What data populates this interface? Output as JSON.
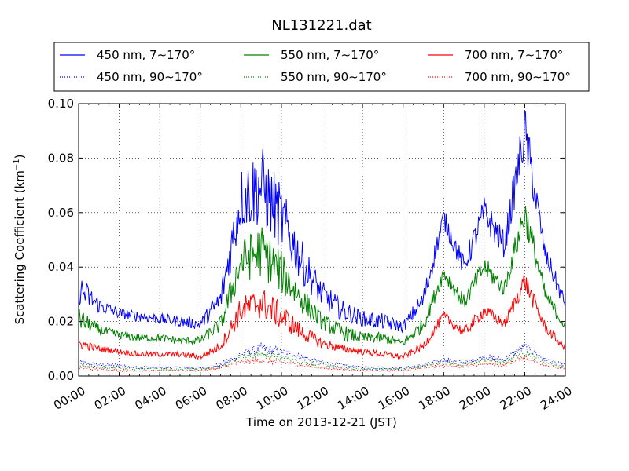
{
  "chart_data": {
    "type": "line",
    "title": "NL131221.dat",
    "xlabel": "Time on 2013-12-21 (JST)",
    "ylabel_main": "Scattering Coefficient (km",
    "ylabel_sup": "−1",
    "ylabel_tail": ")",
    "xlim_hours": [
      0,
      24
    ],
    "ylim": [
      0.0,
      0.1
    ],
    "x_tick_labels": [
      "00:00",
      "02:00",
      "04:00",
      "06:00",
      "08:00",
      "10:00",
      "12:00",
      "14:00",
      "16:00",
      "18:00",
      "20:00",
      "22:00",
      "24:00"
    ],
    "y_tick_labels": [
      "0.00",
      "0.02",
      "0.04",
      "0.06",
      "0.08",
      "0.10"
    ],
    "grid": true,
    "legend_position": "above-plot",
    "series": [
      {
        "name": "450 nm, 7∼170°",
        "color": "#0000ff",
        "style": "solid",
        "base": [
          0.032,
          0.026,
          0.023,
          0.022,
          0.021,
          0.02,
          0.019,
          0.028,
          0.065,
          0.07,
          0.058,
          0.042,
          0.03,
          0.024,
          0.021,
          0.02,
          0.018,
          0.028,
          0.058,
          0.04,
          0.06,
          0.048,
          0.09,
          0.045,
          0.026
        ],
        "amp": [
          0.006,
          0.003,
          0.002,
          0.002,
          0.002,
          0.002,
          0.002,
          0.005,
          0.012,
          0.015,
          0.012,
          0.008,
          0.005,
          0.004,
          0.003,
          0.003,
          0.002,
          0.004,
          0.004,
          0.004,
          0.006,
          0.005,
          0.01,
          0.004,
          0.003
        ]
      },
      {
        "name": "450 nm, 90∼170°",
        "color": "#0000ff",
        "style": "dotted",
        "base": [
          0.005,
          0.004,
          0.004,
          0.003,
          0.003,
          0.003,
          0.003,
          0.004,
          0.008,
          0.01,
          0.009,
          0.007,
          0.005,
          0.004,
          0.003,
          0.003,
          0.003,
          0.004,
          0.006,
          0.005,
          0.007,
          0.006,
          0.011,
          0.006,
          0.004
        ],
        "amp": [
          0.001,
          0.0007,
          0.0006,
          0.0005,
          0.0005,
          0.0005,
          0.0005,
          0.0008,
          0.0015,
          0.002,
          0.0015,
          0.001,
          0.0008,
          0.0006,
          0.0005,
          0.0005,
          0.0005,
          0.0006,
          0.0008,
          0.0007,
          0.001,
          0.0008,
          0.0015,
          0.0007,
          0.0006
        ]
      },
      {
        "name": "550 nm, 7∼170°",
        "color": "#008000",
        "style": "solid",
        "base": [
          0.021,
          0.017,
          0.015,
          0.014,
          0.014,
          0.013,
          0.013,
          0.019,
          0.042,
          0.046,
          0.038,
          0.028,
          0.02,
          0.016,
          0.014,
          0.014,
          0.012,
          0.019,
          0.038,
          0.027,
          0.04,
          0.032,
          0.06,
          0.03,
          0.018
        ],
        "amp": [
          0.004,
          0.002,
          0.0015,
          0.0015,
          0.0015,
          0.0015,
          0.0015,
          0.003,
          0.008,
          0.01,
          0.008,
          0.005,
          0.003,
          0.003,
          0.002,
          0.002,
          0.0015,
          0.003,
          0.003,
          0.003,
          0.004,
          0.003,
          0.007,
          0.003,
          0.002
        ]
      },
      {
        "name": "550 nm, 90∼170°",
        "color": "#008000",
        "style": "dotted",
        "base": [
          0.004,
          0.003,
          0.003,
          0.0025,
          0.0025,
          0.0025,
          0.0025,
          0.0035,
          0.007,
          0.008,
          0.007,
          0.005,
          0.004,
          0.003,
          0.0025,
          0.0025,
          0.0025,
          0.0035,
          0.005,
          0.004,
          0.006,
          0.005,
          0.009,
          0.005,
          0.003
        ],
        "amp": [
          0.0008,
          0.0005,
          0.0005,
          0.0004,
          0.0004,
          0.0004,
          0.0004,
          0.0006,
          0.0012,
          0.0015,
          0.0012,
          0.0008,
          0.0006,
          0.0005,
          0.0004,
          0.0004,
          0.0004,
          0.0005,
          0.0007,
          0.0006,
          0.0008,
          0.0007,
          0.0012,
          0.0006,
          0.0005
        ]
      },
      {
        "name": "700 nm, 7∼170°",
        "color": "#ff0000",
        "style": "solid",
        "base": [
          0.012,
          0.01,
          0.009,
          0.008,
          0.008,
          0.008,
          0.007,
          0.011,
          0.024,
          0.027,
          0.022,
          0.016,
          0.012,
          0.01,
          0.009,
          0.008,
          0.007,
          0.011,
          0.022,
          0.016,
          0.024,
          0.019,
          0.035,
          0.018,
          0.01
        ],
        "amp": [
          0.002,
          0.0012,
          0.001,
          0.001,
          0.001,
          0.001,
          0.001,
          0.0018,
          0.005,
          0.006,
          0.005,
          0.003,
          0.002,
          0.0015,
          0.0012,
          0.0012,
          0.001,
          0.0015,
          0.002,
          0.002,
          0.0025,
          0.002,
          0.004,
          0.002,
          0.0012
        ]
      },
      {
        "name": "700 nm, 90∼170°",
        "color": "#ff0000",
        "style": "dotted",
        "base": [
          0.003,
          0.0025,
          0.002,
          0.002,
          0.002,
          0.002,
          0.002,
          0.003,
          0.005,
          0.006,
          0.005,
          0.004,
          0.003,
          0.0025,
          0.002,
          0.002,
          0.002,
          0.003,
          0.004,
          0.0035,
          0.0045,
          0.004,
          0.007,
          0.004,
          0.0025
        ],
        "amp": [
          0.0006,
          0.0004,
          0.0004,
          0.0003,
          0.0003,
          0.0003,
          0.0003,
          0.0005,
          0.001,
          0.0012,
          0.001,
          0.0007,
          0.0005,
          0.0004,
          0.0003,
          0.0003,
          0.0003,
          0.0004,
          0.0006,
          0.0005,
          0.0006,
          0.0006,
          0.001,
          0.0005,
          0.0004
        ]
      }
    ]
  }
}
